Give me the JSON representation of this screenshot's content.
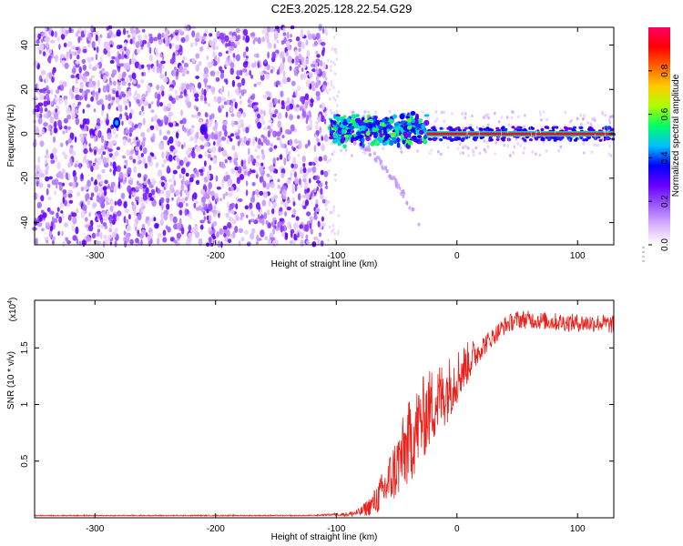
{
  "figure": {
    "title": "C2E3.2025.128.22.54.G29"
  },
  "chart_data": [
    {
      "type": "heatmap",
      "xlabel": "Height of straight line (km)",
      "ylabel": "Frequency (Hz)",
      "xlim": [
        -350,
        130
      ],
      "ylim": [
        -50,
        48
      ],
      "x_ticks": [
        -300,
        -200,
        -100,
        0,
        100
      ],
      "y_ticks": [
        -40,
        -20,
        0,
        20,
        40
      ],
      "colorbar": {
        "label": "Normalized spectral amplitude",
        "range": [
          0,
          1
        ],
        "ticks": [
          0.0,
          0.2,
          0.4,
          0.6,
          0.8
        ],
        "tick_labels": [
          "0.0",
          "0.2",
          "0.4",
          "0.6",
          "0.8"
        ],
        "colormap": [
          "#ffffff",
          "#d9b3ff",
          "#9b59ff",
          "#6a00ff",
          "#0000ff",
          "#00bfff",
          "#00ff66",
          "#aaff00",
          "#ffcc00",
          "#ff6600",
          "#ff0000",
          "#ff0066"
        ]
      },
      "grid": false,
      "regions": [
        {
          "name": "noise",
          "x_range": [
            -350,
            -108
          ],
          "freq_range": [
            -50,
            48
          ],
          "amplitude_range": [
            0.05,
            0.3
          ]
        },
        {
          "name": "blue_blob_1",
          "x": -282,
          "freq": 5,
          "amplitude": 0.45
        },
        {
          "name": "blue_blob_2",
          "x": -210,
          "freq": 2,
          "amplitude": 0.35
        },
        {
          "name": "transition",
          "x_range": [
            -105,
            -25
          ],
          "freq_center": 2,
          "freq_spread": 8,
          "amplitude_range": [
            0.25,
            0.6
          ]
        },
        {
          "name": "tone_line",
          "x_range": [
            -25,
            130
          ],
          "freq": 0,
          "amplitude": 0.95
        },
        {
          "name": "descending_trace",
          "x_range": [
            -100,
            -30
          ],
          "freq_range": [
            -2,
            -42
          ],
          "amplitude": 0.12
        }
      ]
    },
    {
      "type": "line",
      "xlabel": "Height of straight line (km)",
      "ylabel": "SNR (10 * v/v)",
      "y_multiplier": "(x10^4)",
      "xlim": [
        -350,
        130
      ],
      "ylim": [
        0,
        1.92
      ],
      "x_ticks": [
        -300,
        -200,
        -100,
        0,
        100
      ],
      "y_ticks": [
        0.5,
        1.0,
        1.5
      ],
      "y_tick_labels": [
        "0.5",
        "1",
        "1.5"
      ],
      "grid": false,
      "series": [
        {
          "color": "#e8211b",
          "x": [
            -350,
            -300,
            -250,
            -200,
            -150,
            -120,
            -100,
            -90,
            -80,
            -70,
            -60,
            -50,
            -40,
            -30,
            -20,
            -10,
            0,
            10,
            20,
            30,
            40,
            50,
            60,
            80,
            100,
            120,
            130
          ],
          "y": [
            0.02,
            0.02,
            0.02,
            0.02,
            0.02,
            0.02,
            0.03,
            0.03,
            0.05,
            0.12,
            0.25,
            0.45,
            0.65,
            0.85,
            1.0,
            1.1,
            1.25,
            1.38,
            1.5,
            1.6,
            1.7,
            1.75,
            1.75,
            1.73,
            1.72,
            1.72,
            1.7
          ],
          "noise": [
            0.005,
            0.005,
            0.005,
            0.005,
            0.005,
            0.005,
            0.01,
            0.02,
            0.04,
            0.1,
            0.2,
            0.3,
            0.38,
            0.38,
            0.35,
            0.3,
            0.25,
            0.18,
            0.1,
            0.08,
            0.08,
            0.08,
            0.08,
            0.08,
            0.08,
            0.08,
            0.08
          ]
        }
      ]
    }
  ]
}
